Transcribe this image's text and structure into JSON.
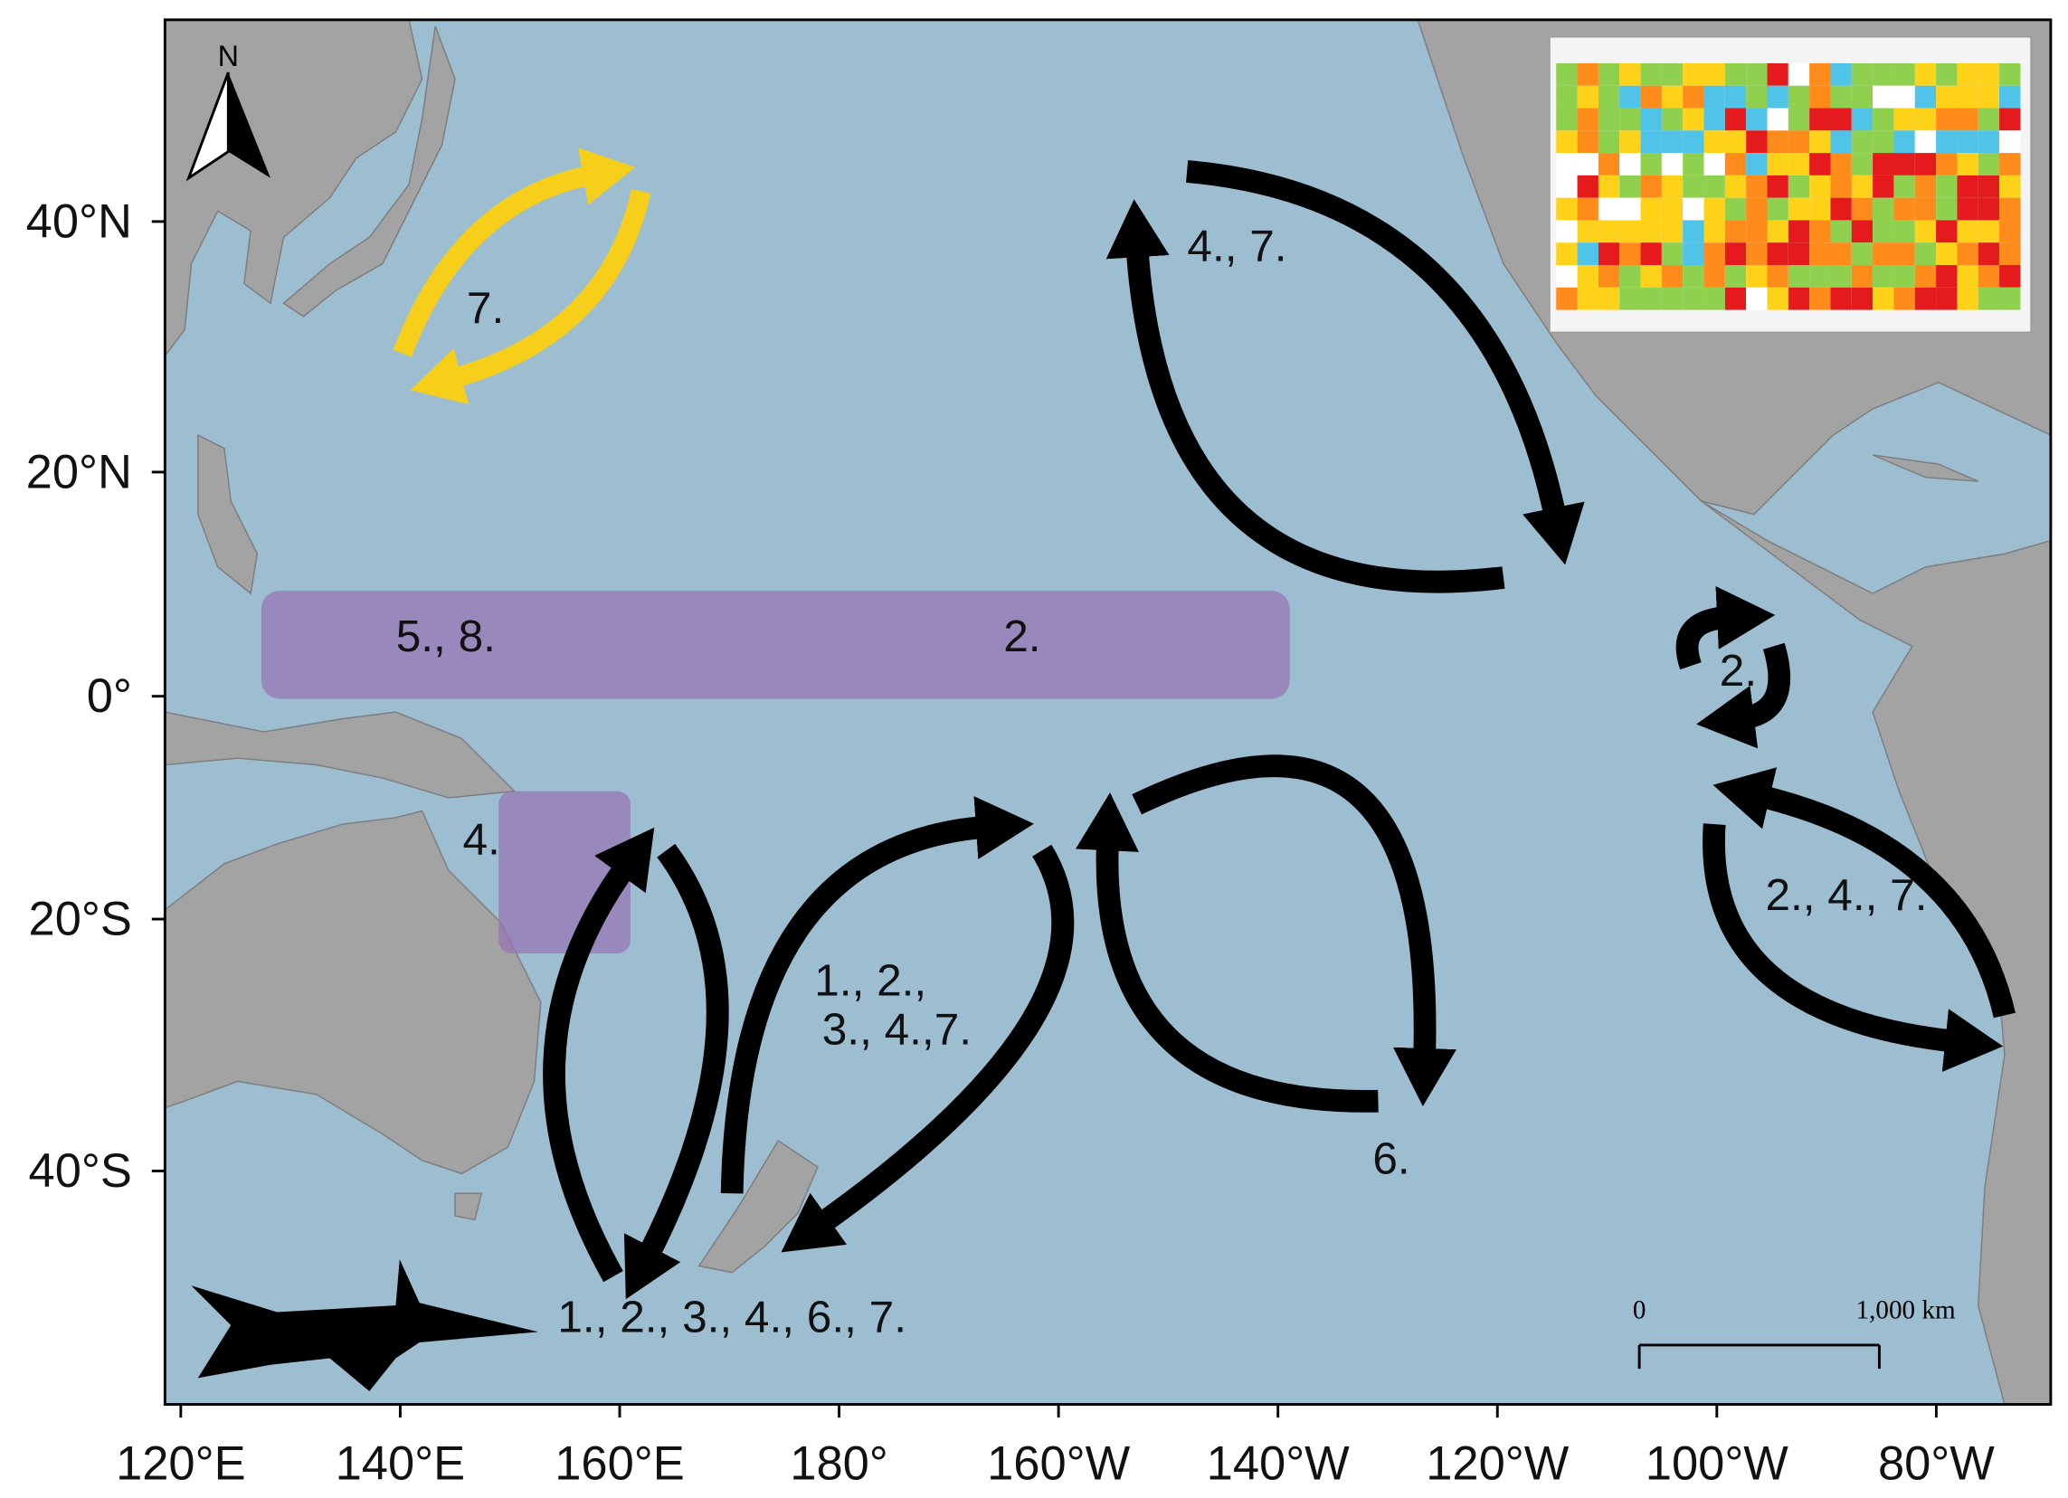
{
  "map": {
    "x_ticks": [
      "120°E",
      "140°E",
      "160°E",
      "180°",
      "160°W",
      "140°W",
      "120°W",
      "100°W",
      "80°W"
    ],
    "y_ticks": [
      "40°N",
      "20°N",
      "0°",
      "20°S",
      "40°S"
    ],
    "north": "N",
    "labels": [
      "7.",
      "4., 7.",
      "5., 8.",
      "2.",
      "2.",
      "4.",
      "1., 2.,",
      "3., 4.,7.",
      "2., 4., 7.",
      "6.",
      "1., 2., 3., 4., 6., 7."
    ],
    "scale_bar": {
      "start": "0",
      "end": "1,000 km"
    }
  }
}
